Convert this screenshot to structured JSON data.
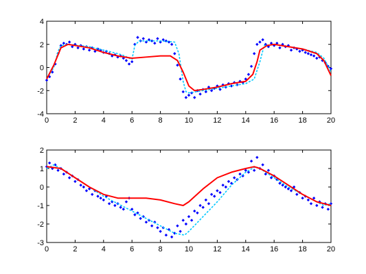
{
  "chart_data": [
    {
      "type": "scatter",
      "title": "",
      "xlabel": "",
      "ylabel": "",
      "xlim": [
        0,
        20
      ],
      "ylim": [
        -4,
        4
      ],
      "xticks": [
        0,
        2,
        4,
        6,
        8,
        10,
        12,
        14,
        16,
        18,
        20
      ],
      "yticks": [
        -4,
        -2,
        0,
        2,
        4
      ],
      "grid": false,
      "colors": {
        "points": "#0000ff",
        "true_fn": "#00c8ff",
        "fit": "#ff0000"
      },
      "series": [
        {
          "kind": "points",
          "x": [
            0.0,
            0.2,
            0.4,
            0.6,
            0.8,
            1.0,
            1.2,
            1.4,
            1.6,
            1.8,
            2.0,
            2.2,
            2.4,
            2.6,
            2.8,
            3.0,
            3.2,
            3.4,
            3.6,
            3.8,
            4.0,
            4.2,
            4.4,
            4.6,
            4.8,
            5.0,
            5.2,
            5.4,
            5.6,
            5.8,
            6.0,
            6.2,
            6.4,
            6.6,
            6.8,
            7.0,
            7.2,
            7.4,
            7.6,
            7.8,
            8.0,
            8.2,
            8.4,
            8.6,
            8.8,
            9.0,
            9.2,
            9.4,
            9.6,
            9.8,
            10.0,
            10.2,
            10.4,
            10.6,
            10.8,
            11.0,
            11.2,
            11.4,
            11.6,
            11.8,
            12.0,
            12.2,
            12.4,
            12.6,
            12.8,
            13.0,
            13.2,
            13.4,
            13.6,
            13.8,
            14.0,
            14.2,
            14.4,
            14.6,
            14.8,
            15.0,
            15.2,
            15.4,
            15.6,
            15.8,
            16.0,
            16.2,
            16.4,
            16.6,
            16.8,
            17.0,
            17.2,
            17.4,
            17.6,
            17.8,
            18.0,
            18.2,
            18.4,
            18.6,
            18.8,
            19.0,
            19.2,
            19.4,
            19.6,
            19.8,
            20.0
          ],
          "y": [
            -1.1,
            -0.8,
            -0.4,
            0.3,
            1.2,
            1.9,
            2.1,
            2.0,
            2.2,
            1.8,
            2.0,
            1.7,
            1.9,
            1.6,
            1.8,
            1.5,
            1.7,
            1.4,
            1.6,
            1.5,
            1.3,
            1.4,
            1.2,
            1.0,
            1.1,
            0.9,
            1.0,
            0.8,
            0.6,
            0.3,
            0.5,
            2.0,
            2.6,
            2.3,
            2.5,
            2.2,
            2.4,
            2.3,
            2.1,
            2.5,
            2.2,
            2.4,
            2.3,
            2.2,
            2.0,
            1.2,
            0.2,
            -1.0,
            -2.1,
            -2.6,
            -2.4,
            -2.2,
            -2.6,
            -2.0,
            -2.3,
            -1.9,
            -2.1,
            -1.7,
            -2.0,
            -1.8,
            -1.6,
            -1.9,
            -1.5,
            -1.7,
            -1.4,
            -1.6,
            -1.3,
            -1.5,
            -1.2,
            -1.3,
            -1.0,
            -0.6,
            0.1,
            1.2,
            2.0,
            2.2,
            2.4,
            2.0,
            1.8,
            2.1,
            1.9,
            2.1,
            1.7,
            2.0,
            1.8,
            1.9,
            1.5,
            1.7,
            1.6,
            1.4,
            1.5,
            1.3,
            1.2,
            1.1,
            1.0,
            0.8,
            0.9,
            0.6,
            0.4,
            0.1,
            -0.1
          ]
        },
        {
          "kind": "true_function",
          "x": [
            0,
            0.5,
            0.8,
            1.0,
            1.5,
            3,
            4,
            5,
            5.5,
            5.8,
            6.0,
            6.2,
            6.5,
            8,
            9,
            9.3,
            9.6,
            9.8,
            10,
            10.5,
            12,
            14,
            14.6,
            15.0,
            15.3,
            16,
            17,
            18,
            19,
            19.5,
            20
          ],
          "y": [
            -1.0,
            0.0,
            1.4,
            1.9,
            2.0,
            1.8,
            1.5,
            1.2,
            1.0,
            0.8,
            0.7,
            1.9,
            2.3,
            2.3,
            2.2,
            1.2,
            -1.2,
            -2.1,
            -2.2,
            -2.1,
            -1.8,
            -1.4,
            -1.0,
            0.5,
            1.9,
            2.0,
            1.8,
            1.6,
            1.3,
            0.8,
            -0.4
          ]
        },
        {
          "kind": "fit",
          "x": [
            0,
            0.5,
            1.0,
            1.5,
            2,
            3,
            4,
            5,
            6,
            7,
            8,
            8.7,
            9.2,
            9.6,
            10,
            10.4,
            11,
            12,
            13,
            14,
            14.5,
            14.8,
            15,
            15.5,
            16,
            17,
            18,
            19,
            19.5,
            20
          ],
          "y": [
            -1.0,
            0.2,
            1.7,
            2.0,
            1.9,
            1.7,
            1.3,
            1.0,
            0.8,
            0.9,
            1.0,
            1.0,
            0.6,
            -0.4,
            -1.6,
            -2.0,
            -1.9,
            -1.7,
            -1.4,
            -1.2,
            -0.6,
            0.5,
            1.5,
            1.9,
            2.0,
            1.8,
            1.6,
            1.2,
            0.6,
            -0.7
          ]
        }
      ]
    },
    {
      "type": "scatter",
      "title": "",
      "xlabel": "",
      "ylabel": "",
      "xlim": [
        0,
        20
      ],
      "ylim": [
        -3,
        2
      ],
      "xticks": [
        0,
        2,
        4,
        6,
        8,
        10,
        12,
        14,
        16,
        18,
        20
      ],
      "yticks": [
        -3,
        -2,
        -1,
        0,
        1,
        2
      ],
      "grid": false,
      "colors": {
        "points": "#0000ff",
        "true_fn": "#00c8ff",
        "fit": "#ff0000"
      },
      "series": [
        {
          "kind": "points",
          "x": [
            0.0,
            0.2,
            0.4,
            0.6,
            0.8,
            1.0,
            1.2,
            1.4,
            1.6,
            1.8,
            2.0,
            2.2,
            2.4,
            2.6,
            2.8,
            3.0,
            3.2,
            3.4,
            3.6,
            3.8,
            4.0,
            4.2,
            4.4,
            4.6,
            4.8,
            5.0,
            5.2,
            5.4,
            5.6,
            5.8,
            6.0,
            6.2,
            6.4,
            6.6,
            6.8,
            7.0,
            7.2,
            7.4,
            7.6,
            7.8,
            8.0,
            8.2,
            8.4,
            8.6,
            8.8,
            9.0,
            9.2,
            9.4,
            9.6,
            9.8,
            10.0,
            10.2,
            10.4,
            10.6,
            10.8,
            11.0,
            11.2,
            11.4,
            11.6,
            11.8,
            12.0,
            12.2,
            12.4,
            12.6,
            12.8,
            13.0,
            13.2,
            13.4,
            13.6,
            13.8,
            14.0,
            14.2,
            14.4,
            14.6,
            14.8,
            15.0,
            15.2,
            15.4,
            15.6,
            15.8,
            16.0,
            16.2,
            16.4,
            16.6,
            16.8,
            17.0,
            17.2,
            17.4,
            17.6,
            17.8,
            18.0,
            18.2,
            18.4,
            18.6,
            18.8,
            19.0,
            19.2,
            19.4,
            19.6,
            19.8,
            20.0
          ],
          "y": [
            1.1,
            1.3,
            1.0,
            1.2,
            0.9,
            1.0,
            0.7,
            0.8,
            0.5,
            0.6,
            0.3,
            0.4,
            0.1,
            0.0,
            -0.2,
            -0.1,
            -0.4,
            -0.2,
            -0.5,
            -0.6,
            -0.7,
            -0.5,
            -0.9,
            -0.8,
            -1.0,
            -0.9,
            -1.1,
            -1.2,
            -0.8,
            -0.6,
            -1.2,
            -1.5,
            -1.4,
            -1.7,
            -1.6,
            -1.9,
            -1.8,
            -2.1,
            -1.9,
            -2.2,
            -2.4,
            -2.2,
            -2.6,
            -2.3,
            -2.7,
            -2.5,
            -2.1,
            -2.4,
            -1.8,
            -2.0,
            -1.6,
            -1.8,
            -1.3,
            -1.4,
            -1.0,
            -1.1,
            -0.7,
            -0.9,
            -0.4,
            -0.5,
            -0.2,
            -0.3,
            0.1,
            0.0,
            0.3,
            0.2,
            0.5,
            0.4,
            0.7,
            0.6,
            0.9,
            0.8,
            1.4,
            0.9,
            1.6,
            1.0,
            1.2,
            0.7,
            0.9,
            0.5,
            0.6,
            0.4,
            0.2,
            0.1,
            0.0,
            -0.1,
            -0.2,
            0.0,
            -0.4,
            -0.3,
            -0.6,
            -0.5,
            -0.7,
            -0.9,
            -0.6,
            -1.0,
            -0.8,
            -1.1,
            -0.9,
            -1.2,
            -0.9
          ]
        },
        {
          "kind": "true_function",
          "x": [
            0,
            0.5,
            1,
            2,
            3,
            4,
            5,
            6,
            7,
            8,
            9,
            9.7,
            10,
            11,
            12,
            13,
            14,
            14.7,
            15,
            16,
            17,
            18,
            19,
            19.5,
            20
          ],
          "y": [
            1.0,
            1.2,
            1.0,
            0.5,
            0.0,
            -0.5,
            -0.9,
            -1.3,
            -1.7,
            -2.1,
            -2.5,
            -2.6,
            -2.4,
            -1.6,
            -0.8,
            0.1,
            0.8,
            1.1,
            1.0,
            0.5,
            0.0,
            -0.4,
            -0.8,
            -1.0,
            -0.9
          ]
        },
        {
          "kind": "fit",
          "x": [
            0,
            1,
            2,
            3,
            4,
            5,
            6,
            7,
            8,
            9,
            9.6,
            10,
            11,
            12,
            13,
            14,
            14.6,
            15,
            16,
            17,
            18,
            19,
            20
          ],
          "y": [
            1.1,
            1.0,
            0.5,
            0.0,
            -0.4,
            -0.6,
            -0.6,
            -0.6,
            -0.7,
            -0.9,
            -1.0,
            -0.8,
            -0.1,
            0.5,
            0.8,
            1.0,
            1.1,
            1.0,
            0.6,
            0.1,
            -0.4,
            -0.8,
            -1.0
          ]
        }
      ]
    }
  ]
}
